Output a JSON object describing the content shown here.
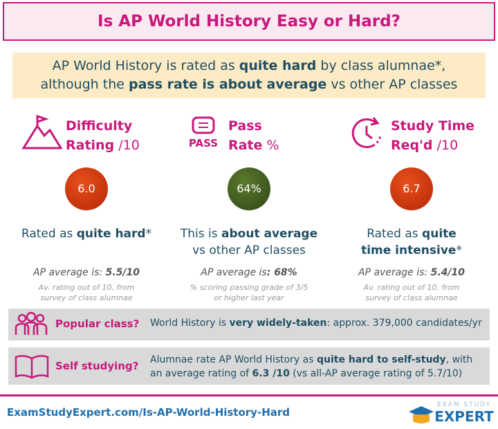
{
  "header": {
    "title": "Is AP World History Easy or Hard?"
  },
  "intro": {
    "line1": [
      "AP World History is rated as ",
      "quite hard",
      " by class alumnae*,"
    ],
    "line2": [
      "although the ",
      "pass rate is about average",
      " vs other AP classes"
    ]
  },
  "columns": [
    {
      "heading": [
        "Difficulty",
        "Rating",
        " /10"
      ],
      "score": "6.0",
      "verdict": [
        "Rated as ",
        "quite hard",
        "*"
      ],
      "average": [
        "AP average is: ",
        "5.5/10"
      ],
      "note": [
        "Av. rating out of 10, from",
        "survey of class alumnae"
      ]
    },
    {
      "icon_text": "PASS",
      "heading": [
        "Pass",
        "Rate",
        " %"
      ],
      "score": "64%",
      "verdict": [
        "This is ",
        "about average",
        "vs other AP classes"
      ],
      "average": [
        "AP average is",
        ": 68%"
      ],
      "note": [
        "% scoring passing grade of 3/5",
        "or higher last year"
      ]
    },
    {
      "heading": [
        "Study Time",
        "Req'd",
        " /10"
      ],
      "score": "6.7",
      "verdict": [
        "Rated as ",
        "quite time intensive",
        "*"
      ],
      "average": [
        "AP average is: ",
        "5.4/10"
      ],
      "note": [
        "Av. rating out of 10, from",
        "survey of class alumnae"
      ]
    }
  ],
  "rows": [
    {
      "label": "Popular class?",
      "text": [
        "World History is ",
        "very widely-taken",
        ": approx. 379,000  candidates/yr"
      ]
    },
    {
      "label": "Self studying?",
      "text": [
        "Alumnae rate AP World History as ",
        "quite hard to self-study",
        ", with an average rating of ",
        "6.3 /10",
        " (vs all-AP average rating of 5.7/10)"
      ]
    }
  ],
  "footer": {
    "url": "ExamStudyExpert.com/Is-AP-World-History-Hard",
    "logo_top": "EXAM STUDY",
    "logo_bottom": "EXPERT"
  }
}
